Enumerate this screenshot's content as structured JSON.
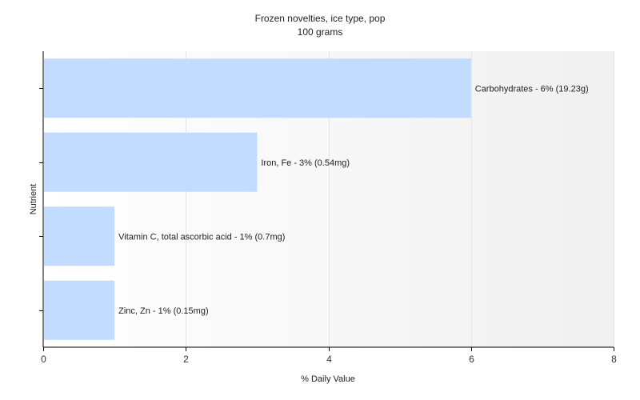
{
  "chart_data": {
    "type": "bar",
    "orientation": "horizontal",
    "title": "Frozen novelties, ice type, pop",
    "subtitle": "100 grams",
    "xlabel": "% Daily Value",
    "ylabel": "Nutrient",
    "xlim": [
      0,
      8
    ],
    "xticks": [
      "0",
      "2",
      "4",
      "6",
      "8"
    ],
    "grid": true,
    "legend": "none",
    "bar_color": "#c2dcff",
    "categories": [
      "Carbohydrates",
      "Iron, Fe",
      "Vitamin C, total ascorbic acid",
      "Zinc, Zn"
    ],
    "values": [
      6,
      3,
      1,
      1
    ],
    "data_labels": [
      "Carbohydrates - 6% (19.23g)",
      "Iron, Fe - 3% (0.54mg)",
      "Vitamin C, total ascorbic acid - 1% (0.7mg)",
      "Zinc, Zn - 1% (0.15mg)"
    ]
  }
}
